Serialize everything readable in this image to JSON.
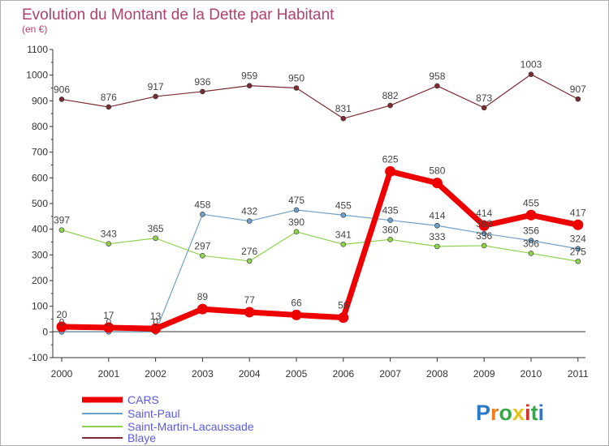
{
  "chart_data": {
    "type": "line",
    "title": "Evolution du Montant de la Dette par Habitant",
    "subtitle": "(en €)",
    "x": [
      "2000",
      "2001",
      "2002",
      "2003",
      "2004",
      "2005",
      "2006",
      "2007",
      "2008",
      "2009",
      "2010",
      "2011"
    ],
    "ylim": [
      -100,
      1100
    ],
    "yticks": [
      -100,
      0,
      100,
      200,
      300,
      400,
      500,
      600,
      700,
      800,
      900,
      1000,
      1100
    ],
    "grid": false,
    "legend_position": "bottom-left",
    "series": [
      {
        "name": "Blaye",
        "color": "#7b2b33",
        "values": [
          906,
          876,
          917,
          936,
          959,
          950,
          831,
          882,
          958,
          873,
          1003,
          907
        ]
      },
      {
        "name": "Saint-Martin-Lacaussade",
        "color": "#8fd14f",
        "values": [
          397,
          343,
          365,
          297,
          276,
          390,
          341,
          360,
          333,
          336,
          306,
          275
        ]
      },
      {
        "name": "Saint-Paul",
        "color": "#6fa0c8",
        "values": [
          0,
          0,
          0,
          458,
          432,
          475,
          455,
          435,
          414,
          383,
          356,
          324
        ]
      },
      {
        "name": "CARS",
        "color": "#ee0000",
        "values": [
          20,
          17,
          13,
          89,
          77,
          66,
          56,
          625,
          580,
          414,
          455,
          417
        ]
      }
    ]
  },
  "legend": {
    "items": [
      "CARS",
      "Saint-Paul",
      "Saint-Martin-Lacaussade",
      "Blaye"
    ]
  },
  "logo": {
    "letters": [
      "P",
      "r",
      "o",
      "x",
      "i",
      "t",
      "i"
    ],
    "colors": [
      "#2a78c8",
      "#ee7d1a",
      "#3aa64a",
      "#e8c21a",
      "#d6332d",
      "#3aa64a",
      "#2a78c8"
    ]
  }
}
